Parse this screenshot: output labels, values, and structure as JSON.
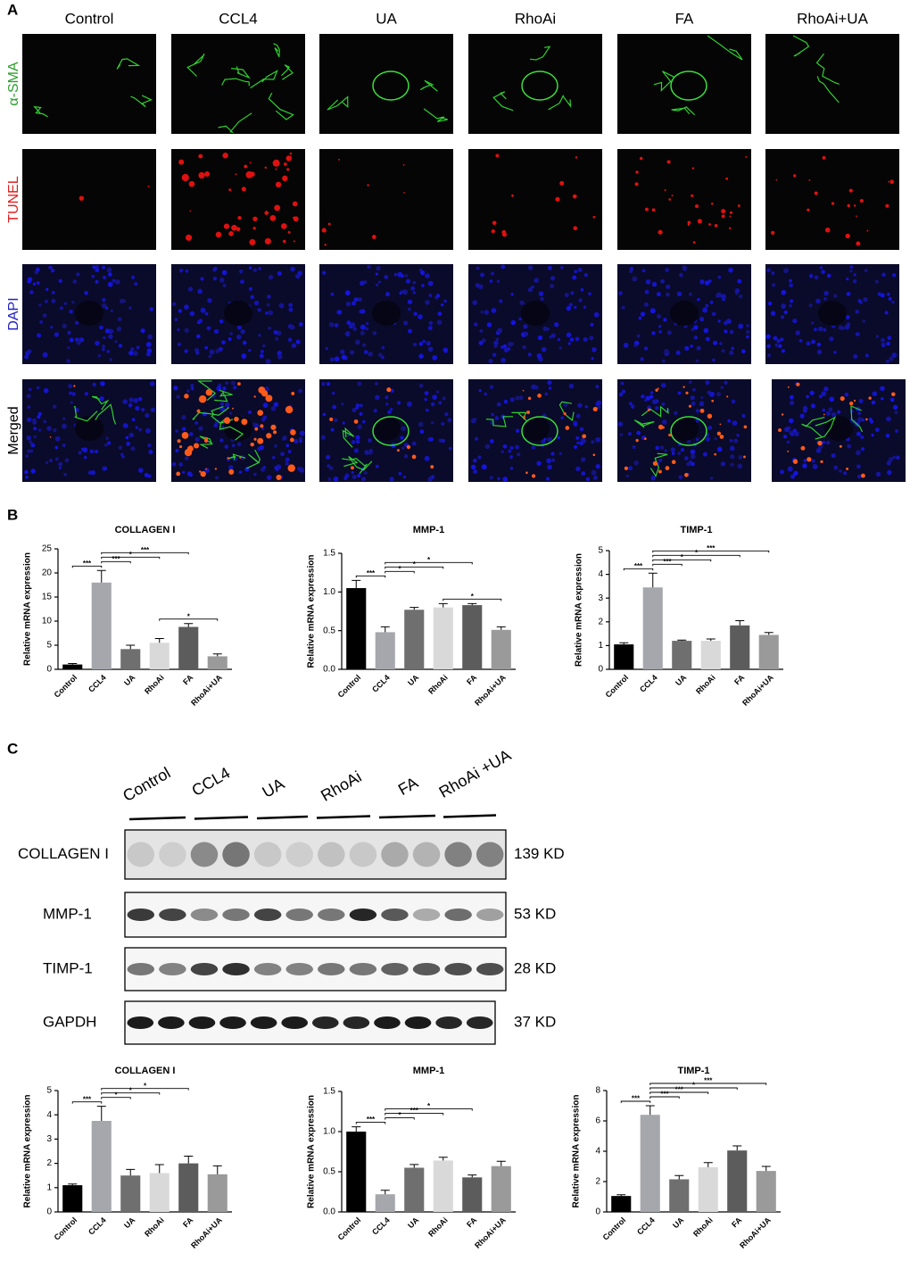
{
  "panel_labels": [
    "A",
    "B",
    "C"
  ],
  "panel_a": {
    "columns": [
      "Control",
      "CCL4",
      "UA",
      "RhoAi",
      "FA",
      "RhoAi+UA"
    ],
    "rows": [
      {
        "label": "α-SMA",
        "color": "#2e9e2e"
      },
      {
        "label": "TUNEL",
        "color": "#e02020"
      },
      {
        "label": "DAPI",
        "color": "#2020c0"
      },
      {
        "label": "Merged",
        "color": "#000000"
      }
    ]
  },
  "panel_c_blot": {
    "lanes": [
      "Control",
      "CCL4",
      "UA",
      "RhoAi",
      "FA",
      "RhoAi +UA"
    ],
    "proteins": [
      {
        "name": "COLLAGEN I",
        "size": "139 KD"
      },
      {
        "name": "MMP-1",
        "size": "53 KD"
      },
      {
        "name": "TIMP-1",
        "size": "28 KD"
      },
      {
        "name": "GAPDH",
        "size": "37 KD"
      }
    ]
  },
  "chart_data": [
    {
      "type": "bar",
      "title": "COLLAGEN I",
      "y_label": "Relative mRNA expression",
      "categories": [
        "Control",
        "CCL4",
        "UA",
        "RhoAi",
        "FA",
        "RhoAi+UA"
      ],
      "values": [
        1.0,
        18,
        4.2,
        5.5,
        8.8,
        2.7
      ],
      "errors": [
        0.2,
        2.5,
        0.8,
        0.9,
        0.7,
        0.5
      ],
      "colors": [
        "#000000",
        "#a6a6ad",
        "#6f6f6f",
        "#d9d9d9",
        "#5c5c5c",
        "#9a9a9a"
      ],
      "ylim": [
        0,
        25
      ],
      "yticks": [
        0,
        5,
        10,
        15,
        20,
        25
      ],
      "significance": [
        {
          "pair": [
            3,
            5
          ],
          "label": "*"
        },
        {
          "pair": [
            0,
            1
          ],
          "label": "***"
        },
        {
          "pair": [
            1,
            2
          ],
          "label": "***"
        },
        {
          "pair": [
            1,
            3
          ],
          "label": "*"
        },
        {
          "pair": [
            1,
            4
          ],
          "label": "***"
        }
      ]
    },
    {
      "type": "bar",
      "title": "MMP-1",
      "y_label": "Relative mRNA expression",
      "categories": [
        "Control",
        "CCL4",
        "UA",
        "RhoAi",
        "FA",
        "RhoAi+UA"
      ],
      "values": [
        1.05,
        0.48,
        0.77,
        0.8,
        0.83,
        0.51
      ],
      "errors": [
        0.1,
        0.07,
        0.03,
        0.05,
        0.02,
        0.04
      ],
      "colors": [
        "#000000",
        "#a6a6ad",
        "#6f6f6f",
        "#d9d9d9",
        "#5c5c5c",
        "#9a9a9a"
      ],
      "ylim": [
        0,
        1.5
      ],
      "yticks": [
        {
          "value": 0,
          "label": "0.0"
        },
        0.5,
        {
          "value": 1,
          "label": "1.0"
        },
        1.5
      ],
      "significance": [
        {
          "pair": [
            3,
            5
          ],
          "label": "*"
        },
        {
          "pair": [
            0,
            1
          ],
          "label": "***"
        },
        {
          "pair": [
            1,
            2
          ],
          "label": "*"
        },
        {
          "pair": [
            1,
            3
          ],
          "label": "*"
        },
        {
          "pair": [
            1,
            4
          ],
          "label": "*"
        }
      ]
    },
    {
      "type": "bar",
      "title": "TIMP-1",
      "y_label": "Relative mRNA expression",
      "categories": [
        "Control",
        "CCL4",
        "UA",
        "RhoAi",
        "FA",
        "RhoAi+UA"
      ],
      "values": [
        1.05,
        3.45,
        1.2,
        1.2,
        1.85,
        1.45
      ],
      "errors": [
        0.07,
        0.6,
        0.03,
        0.08,
        0.2,
        0.1
      ],
      "colors": [
        "#000000",
        "#a6a6ad",
        "#6f6f6f",
        "#d9d9d9",
        "#5c5c5c",
        "#9a9a9a"
      ],
      "ylim": [
        0,
        5
      ],
      "yticks": [
        0,
        1,
        2,
        3,
        4,
        5
      ],
      "significance": [
        {
          "pair": [
            0,
            1
          ],
          "label": "***"
        },
        {
          "pair": [
            1,
            2
          ],
          "label": "***"
        },
        {
          "pair": [
            1,
            3
          ],
          "label": "*"
        },
        {
          "pair": [
            1,
            4
          ],
          "label": "*"
        },
        {
          "pair": [
            1,
            5
          ],
          "label": "***"
        }
      ]
    },
    {
      "type": "bar",
      "title": "COLLAGEN I",
      "y_label": "Relative mRNA expression",
      "categories": [
        "Control",
        "CCL4",
        "UA",
        "RhoAi",
        "FA",
        "RhoAi+UA"
      ],
      "values": [
        1.1,
        3.75,
        1.5,
        1.6,
        2.0,
        1.55
      ],
      "errors": [
        0.05,
        0.6,
        0.25,
        0.35,
        0.3,
        0.35
      ],
      "colors": [
        "#000000",
        "#a6a6ad",
        "#6f6f6f",
        "#d9d9d9",
        "#5c5c5c",
        "#9a9a9a"
      ],
      "ylim": [
        0,
        5
      ],
      "yticks": [
        0,
        1,
        2,
        3,
        4,
        5
      ],
      "significance": [
        {
          "pair": [
            0,
            1
          ],
          "label": "***"
        },
        {
          "pair": [
            1,
            2
          ],
          "label": "*"
        },
        {
          "pair": [
            1,
            3
          ],
          "label": "*"
        },
        {
          "pair": [
            1,
            4
          ],
          "label": "*"
        }
      ]
    },
    {
      "type": "bar",
      "title": "MMP-1",
      "y_label": "Relative mRNA expression",
      "categories": [
        "Control",
        "CCL4",
        "UA",
        "RhoAi",
        "FA",
        "RhoAi+UA"
      ],
      "values": [
        1.0,
        0.22,
        0.55,
        0.64,
        0.43,
        0.57
      ],
      "errors": [
        0.06,
        0.05,
        0.04,
        0.04,
        0.03,
        0.06
      ],
      "colors": [
        "#000000",
        "#a6a6ad",
        "#6f6f6f",
        "#d9d9d9",
        "#5c5c5c",
        "#9a9a9a"
      ],
      "ylim": [
        0,
        1.5
      ],
      "yticks": [
        {
          "value": 0,
          "label": "0.0"
        },
        0.5,
        {
          "value": 1,
          "label": "1.0"
        },
        1.5
      ],
      "significance": [
        {
          "pair": [
            0,
            1
          ],
          "label": "***"
        },
        {
          "pair": [
            1,
            2
          ],
          "label": "*"
        },
        {
          "pair": [
            1,
            3
          ],
          "label": "***"
        },
        {
          "pair": [
            1,
            4
          ],
          "label": "*"
        }
      ]
    },
    {
      "type": "bar",
      "title": "TIMP-1",
      "y_label": "Relative mRNA expression",
      "categories": [
        "Control",
        "CCL4",
        "UA",
        "RhoAi",
        "FA",
        "RhoAi+UA"
      ],
      "values": [
        1.05,
        6.4,
        2.15,
        2.95,
        4.05,
        2.7
      ],
      "errors": [
        0.08,
        0.6,
        0.25,
        0.3,
        0.3,
        0.3
      ],
      "colors": [
        "#000000",
        "#a6a6ad",
        "#6f6f6f",
        "#d9d9d9",
        "#5c5c5c",
        "#9a9a9a"
      ],
      "ylim": [
        0,
        8
      ],
      "yticks": [
        0,
        2,
        4,
        6,
        8
      ],
      "significance": [
        {
          "pair": [
            0,
            1
          ],
          "label": "***"
        },
        {
          "pair": [
            1,
            2
          ],
          "label": "***"
        },
        {
          "pair": [
            1,
            3
          ],
          "label": "***"
        },
        {
          "pair": [
            1,
            4
          ],
          "label": "*"
        },
        {
          "pair": [
            1,
            5
          ],
          "label": "***"
        }
      ]
    }
  ]
}
